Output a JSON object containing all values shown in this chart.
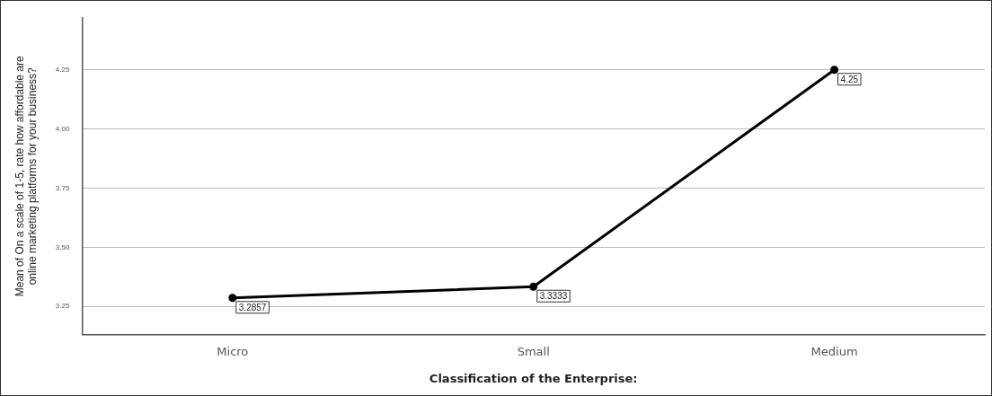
{
  "chart_data": {
    "type": "line",
    "xlabel": "Classification of the Enterprise:",
    "ylabel": "Mean of On a scale of 1-5, rate how affordable are online marketing platforms for your business?",
    "categories": [
      "Micro",
      "Small",
      "Medium"
    ],
    "values": [
      3.2857,
      3.3333,
      4.25
    ],
    "color": "#000000",
    "ylim": [
      3.13,
      4.47
    ],
    "yticks": [
      3.25,
      {
        "value": 3.5,
        "label": "3.50"
      },
      3.75,
      {
        "value": 4,
        "label": "4.00"
      },
      4.25
    ],
    "grid": "y",
    "legend": false,
    "marker": "circle",
    "data_labels": true
  }
}
